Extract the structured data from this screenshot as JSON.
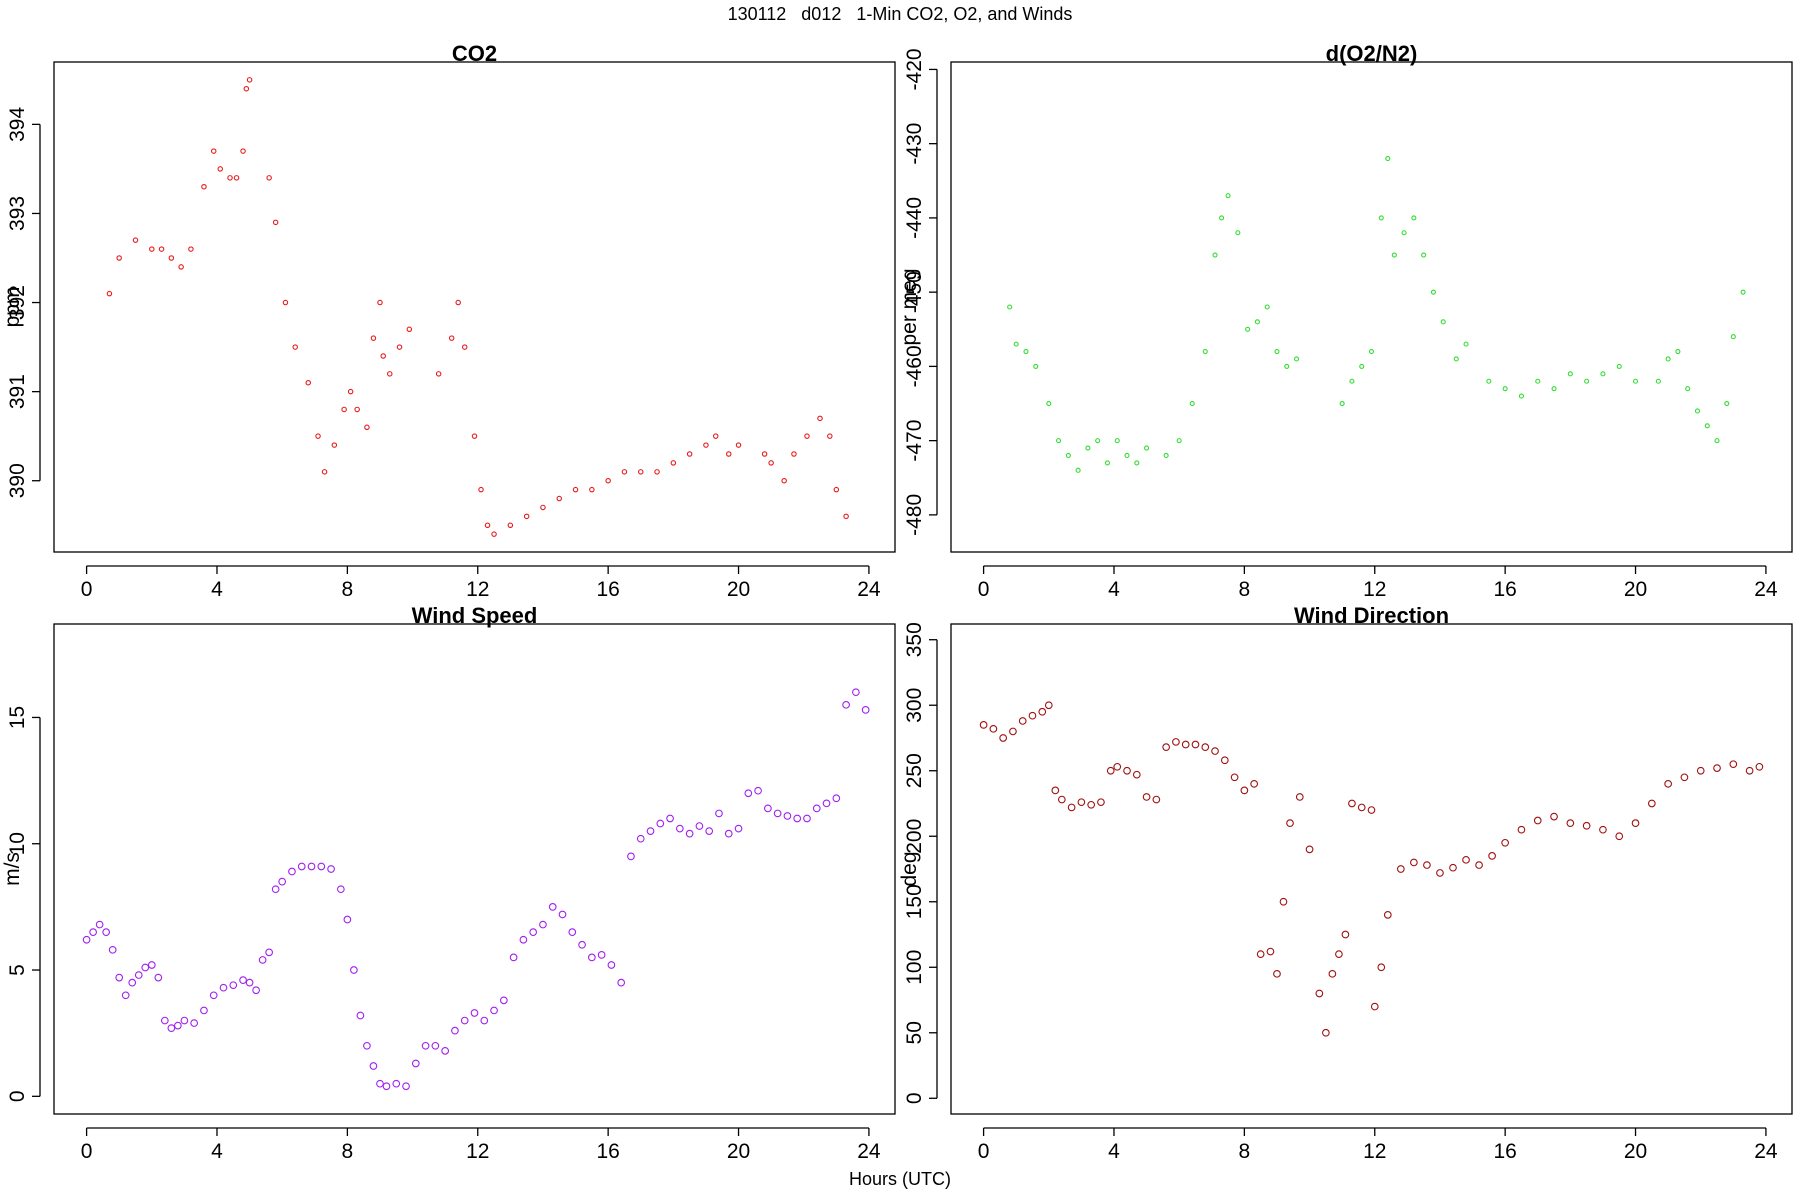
{
  "figure": {
    "title": "130112   d012   1-Min CO2, O2, and Winds",
    "xlabel": "Hours (UTC)"
  },
  "chart_data": [
    {
      "type": "scatter",
      "title": "CO2",
      "xlabel": "",
      "ylabel": "ppm",
      "xlim": [
        -1,
        24.8
      ],
      "ylim": [
        389.2,
        394.7
      ],
      "xticks": [
        0,
        4,
        8,
        12,
        16,
        20,
        24
      ],
      "yticks": [
        390,
        391,
        392,
        393,
        394
      ],
      "color": "#e8191b",
      "marker_radius": 2.2,
      "series": [
        {
          "x": [
            0.7,
            1.0,
            1.5,
            2.0,
            2.3,
            2.6,
            2.9,
            3.2,
            3.6,
            3.9,
            4.1,
            4.4,
            4.6,
            4.8,
            4.9,
            5.0,
            5.6,
            5.8,
            6.1,
            6.4,
            6.8,
            7.1,
            7.3,
            7.6,
            7.9,
            8.1,
            8.3,
            8.6,
            8.8,
            9.0,
            9.1,
            9.3,
            9.6,
            9.9,
            10.8,
            11.2,
            11.4,
            11.6,
            11.9,
            12.1,
            12.3,
            12.5,
            13.0,
            13.5,
            14.0,
            14.5,
            15.0,
            15.5,
            16.0,
            16.5,
            17.0,
            17.5,
            18.0,
            18.5,
            19.0,
            19.3,
            19.7,
            20.0,
            20.8,
            21.0,
            21.4,
            21.7,
            22.1,
            22.5,
            22.8,
            23.0,
            23.3
          ],
          "y": [
            392.1,
            392.5,
            392.7,
            392.6,
            392.6,
            392.5,
            392.4,
            392.6,
            393.3,
            393.7,
            393.5,
            393.4,
            393.4,
            393.7,
            394.4,
            394.5,
            393.4,
            392.9,
            392.0,
            391.5,
            391.1,
            390.5,
            390.1,
            390.4,
            390.8,
            391.0,
            390.8,
            390.6,
            391.6,
            392.0,
            391.4,
            391.2,
            391.5,
            391.7,
            391.2,
            391.6,
            392.0,
            391.5,
            390.5,
            389.9,
            389.5,
            389.4,
            389.5,
            389.6,
            389.7,
            389.8,
            389.9,
            389.9,
            390.0,
            390.1,
            390.1,
            390.1,
            390.2,
            390.3,
            390.4,
            390.5,
            390.3,
            390.4,
            390.3,
            390.2,
            390.0,
            390.3,
            390.5,
            390.7,
            390.5,
            389.9,
            389.6
          ]
        }
      ]
    },
    {
      "type": "scatter",
      "title": "d(O2/N2)",
      "xlabel": "",
      "ylabel": "per meg",
      "xlim": [
        -1,
        24.8
      ],
      "ylim": [
        -485,
        -419
      ],
      "xticks": [
        0,
        4,
        8,
        12,
        16,
        20,
        24
      ],
      "yticks": [
        -480,
        -470,
        -460,
        -450,
        -440,
        -430,
        -420
      ],
      "color": "#33dd33",
      "marker_radius": 2.0,
      "series": [
        {
          "x": [
            0.8,
            1.0,
            1.3,
            1.6,
            2.0,
            2.3,
            2.6,
            2.9,
            3.2,
            3.5,
            3.8,
            4.1,
            4.4,
            4.7,
            5.0,
            5.6,
            6.0,
            6.4,
            6.8,
            7.1,
            7.3,
            7.5,
            7.8,
            8.1,
            8.4,
            8.7,
            9.0,
            9.3,
            9.6,
            11.0,
            11.3,
            11.6,
            11.9,
            12.2,
            12.4,
            12.6,
            12.9,
            13.2,
            13.5,
            13.8,
            14.1,
            14.5,
            14.8,
            15.5,
            16.0,
            16.5,
            17.0,
            17.5,
            18.0,
            18.5,
            19.0,
            19.5,
            20.0,
            20.7,
            21.0,
            21.3,
            21.6,
            21.9,
            22.2,
            22.5,
            22.8,
            23.0,
            23.3
          ],
          "y": [
            -452,
            -457,
            -458,
            -460,
            -465,
            -470,
            -472,
            -474,
            -471,
            -470,
            -473,
            -470,
            -472,
            -473,
            -471,
            -472,
            -470,
            -465,
            -458,
            -445,
            -440,
            -437,
            -442,
            -455,
            -454,
            -452,
            -458,
            -460,
            -459,
            -465,
            -462,
            -460,
            -458,
            -440,
            -432,
            -445,
            -442,
            -440,
            -445,
            -450,
            -454,
            -459,
            -457,
            -462,
            -463,
            -464,
            -462,
            -463,
            -461,
            -462,
            -461,
            -460,
            -462,
            -462,
            -459,
            -458,
            -463,
            -466,
            -468,
            -470,
            -465,
            -456,
            -450
          ]
        }
      ]
    },
    {
      "type": "scatter",
      "title": "Wind Speed",
      "xlabel": "",
      "ylabel": "m/s",
      "xlim": [
        -1,
        24.8
      ],
      "ylim": [
        -0.7,
        18.7
      ],
      "xticks": [
        0,
        4,
        8,
        12,
        16,
        20,
        24
      ],
      "yticks": [
        0,
        5,
        10,
        15
      ],
      "color": "#a020f0",
      "marker_radius": 3.3,
      "series": [
        {
          "x": [
            0.0,
            0.2,
            0.4,
            0.6,
            0.8,
            1.0,
            1.2,
            1.4,
            1.6,
            1.8,
            2.0,
            2.2,
            2.4,
            2.6,
            2.8,
            3.0,
            3.3,
            3.6,
            3.9,
            4.2,
            4.5,
            4.8,
            5.0,
            5.2,
            5.4,
            5.6,
            5.8,
            6.0,
            6.3,
            6.6,
            6.9,
            7.2,
            7.5,
            7.8,
            8.0,
            8.2,
            8.4,
            8.6,
            8.8,
            9.0,
            9.2,
            9.5,
            9.8,
            10.1,
            10.4,
            10.7,
            11.0,
            11.3,
            11.6,
            11.9,
            12.2,
            12.5,
            12.8,
            13.1,
            13.4,
            13.7,
            14.0,
            14.3,
            14.6,
            14.9,
            15.2,
            15.5,
            15.8,
            16.1,
            16.4,
            16.7,
            17.0,
            17.3,
            17.6,
            17.9,
            18.2,
            18.5,
            18.8,
            19.1,
            19.4,
            19.7,
            20.0,
            20.3,
            20.6,
            20.9,
            21.2,
            21.5,
            21.8,
            22.1,
            22.4,
            22.7,
            23.0,
            23.3,
            23.6,
            23.9
          ],
          "y": [
            6.2,
            6.5,
            6.8,
            6.5,
            5.8,
            4.7,
            4.0,
            4.5,
            4.8,
            5.1,
            5.2,
            4.7,
            3.0,
            2.7,
            2.8,
            3.0,
            2.9,
            3.4,
            4.0,
            4.3,
            4.4,
            4.6,
            4.5,
            4.2,
            5.4,
            5.7,
            8.2,
            8.5,
            8.9,
            9.1,
            9.1,
            9.1,
            9.0,
            8.2,
            7.0,
            5.0,
            3.2,
            2.0,
            1.2,
            0.5,
            0.4,
            0.5,
            0.4,
            1.3,
            2.0,
            2.0,
            1.8,
            2.6,
            3.0,
            3.3,
            3.0,
            3.4,
            3.8,
            5.5,
            6.2,
            6.5,
            6.8,
            7.5,
            7.2,
            6.5,
            6.0,
            5.5,
            5.6,
            5.2,
            4.5,
            9.5,
            10.2,
            10.5,
            10.8,
            11.0,
            10.6,
            10.4,
            10.7,
            10.5,
            11.2,
            10.4,
            10.6,
            12.0,
            12.1,
            11.4,
            11.2,
            11.1,
            11.0,
            11.0,
            11.4,
            11.6,
            11.8,
            15.5,
            16.0,
            15.3
          ]
        }
      ]
    },
    {
      "type": "scatter",
      "title": "Wind Direction",
      "xlabel": "",
      "ylabel": "deg",
      "xlim": [
        -1,
        24.8
      ],
      "ylim": [
        -12,
        362
      ],
      "xticks": [
        0,
        4,
        8,
        12,
        16,
        20,
        24
      ],
      "yticks": [
        0,
        50,
        100,
        150,
        200,
        250,
        300,
        350
      ],
      "color": "#a01010",
      "marker_radius": 3.3,
      "series": [
        {
          "x": [
            0.0,
            0.3,
            0.6,
            0.9,
            1.2,
            1.5,
            1.8,
            2.0,
            2.2,
            2.4,
            2.7,
            3.0,
            3.3,
            3.6,
            3.9,
            4.1,
            4.4,
            4.7,
            5.0,
            5.3,
            5.6,
            5.9,
            6.2,
            6.5,
            6.8,
            7.1,
            7.4,
            7.7,
            8.0,
            8.3,
            8.5,
            8.8,
            9.0,
            9.2,
            9.4,
            9.7,
            10.0,
            10.3,
            10.5,
            10.7,
            10.9,
            11.1,
            11.3,
            11.6,
            11.9,
            12.0,
            12.2,
            12.4,
            12.8,
            13.2,
            13.6,
            14.0,
            14.4,
            14.8,
            15.2,
            15.6,
            16.0,
            16.5,
            17.0,
            17.5,
            18.0,
            18.5,
            19.0,
            19.5,
            20.0,
            20.5,
            21.0,
            21.5,
            22.0,
            22.5,
            23.0,
            23.5,
            23.8
          ],
          "y": [
            285,
            282,
            275,
            280,
            288,
            292,
            295,
            300,
            235,
            228,
            222,
            226,
            224,
            226,
            250,
            253,
            250,
            247,
            230,
            228,
            268,
            272,
            270,
            270,
            268,
            265,
            258,
            245,
            235,
            240,
            110,
            112,
            95,
            150,
            210,
            230,
            190,
            80,
            50,
            95,
            110,
            125,
            225,
            222,
            220,
            70,
            100,
            140,
            175,
            180,
            178,
            172,
            176,
            182,
            178,
            185,
            195,
            205,
            212,
            215,
            210,
            208,
            205,
            200,
            210,
            225,
            240,
            245,
            250,
            252,
            255,
            250,
            253
          ]
        }
      ]
    }
  ]
}
